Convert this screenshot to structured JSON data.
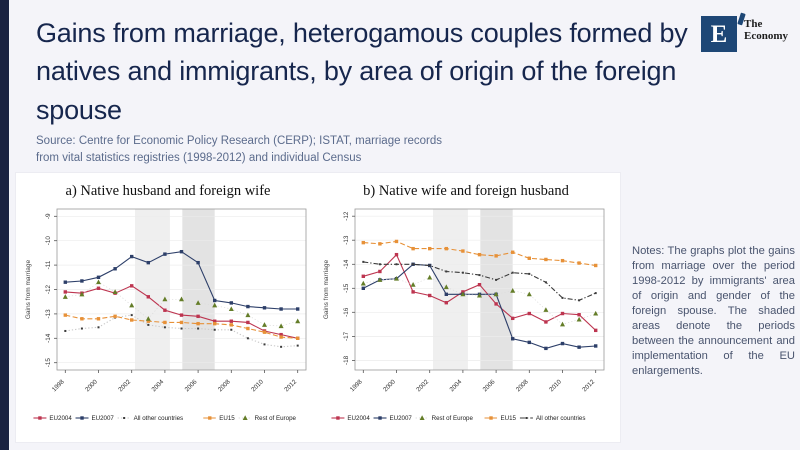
{
  "page": {
    "title": "Gains from marriage, heterogamous couples formed by natives and immigrants, by area of origin of the foreign spouse",
    "source": "Source: Centre for Economic Policy Research (CERP); ISTAT, marriage records from vital statistics registries (1998-2012) and individual Census",
    "notes": "Notes: The graphs plot the gains from marriage over the period 1998-2012 by immigrants' area of origin and gender of the foreign spouse. The shaded areas denote the periods between the announcement and implementation of the EU enlargements."
  },
  "logo": {
    "letter": "E",
    "text_line1": "The",
    "text_line2": "Economy",
    "box_color": "#1e4776"
  },
  "colors": {
    "accent_bar": "#1a2240",
    "title": "#16264d",
    "panel": "#ffffff",
    "band_light": "#efefef",
    "band_dark": "#e3e3e3"
  },
  "chart_data": [
    {
      "type": "line",
      "title": "a) Native husband and foreign wife",
      "ylabel": "Gains from marriage",
      "x": [
        1998,
        1999,
        2000,
        2001,
        2002,
        2003,
        2004,
        2005,
        2006,
        2007,
        2008,
        2009,
        2010,
        2011,
        2012
      ],
      "xticks": [
        1998,
        2000,
        2002,
        2004,
        2006,
        2008,
        2010,
        2012
      ],
      "xlim": [
        1997.5,
        2012.5
      ],
      "ylim": [
        -15.3,
        -8.7
      ],
      "yticks": [
        -9,
        -10,
        -11,
        -12,
        -13,
        -14,
        -15
      ],
      "bands": [
        [
          2002.2,
          2004.3
        ],
        [
          2005.05,
          2007.0
        ]
      ],
      "band_colors": [
        "#efefef",
        "#e3e3e3"
      ],
      "grid": true,
      "legend_position": "bottom",
      "series": [
        {
          "name": "EU2004",
          "color": "#bd3550",
          "line": "solid",
          "marker": "square",
          "values": [
            -12.1,
            -12.15,
            -11.95,
            -12.15,
            -11.85,
            -12.3,
            -12.85,
            -13.05,
            -13.1,
            -13.3,
            -13.3,
            -13.35,
            -13.7,
            -13.85,
            -14.0
          ]
        },
        {
          "name": "EU2007",
          "color": "#2d3f69",
          "line": "solid",
          "marker": "square",
          "values": [
            -11.7,
            -11.65,
            -11.5,
            -11.15,
            -10.65,
            -10.9,
            -10.55,
            -10.45,
            -10.9,
            -12.45,
            -12.55,
            -12.7,
            -12.75,
            -12.8,
            -12.8
          ]
        },
        {
          "name": "All other countries",
          "color": "#3b3b3b",
          "line": "dotted",
          "line_color": "#c9c9c9",
          "marker": "dot-small",
          "values": [
            -13.7,
            -13.6,
            -13.55,
            -13.15,
            -13.05,
            -13.45,
            -13.55,
            -13.6,
            -13.6,
            -13.65,
            -13.65,
            -14.0,
            -14.25,
            -14.35,
            -14.3
          ]
        },
        {
          "name": "EU15",
          "color": "#e79138",
          "line": "dashed",
          "marker": "square",
          "values": [
            -13.05,
            -13.2,
            -13.2,
            -13.1,
            -13.25,
            -13.3,
            -13.35,
            -13.35,
            -13.4,
            -13.4,
            -13.45,
            -13.6,
            -13.75,
            -13.95,
            -14.0
          ]
        },
        {
          "name": "Rest of Europe",
          "color": "#647d28",
          "line": "faint",
          "line_color": "#dcdcdc",
          "marker": "triangle",
          "values": [
            -12.3,
            -12.2,
            -11.7,
            -12.1,
            -12.65,
            -13.2,
            -12.4,
            -12.4,
            -12.55,
            -12.65,
            -12.8,
            -13.05,
            -13.45,
            -13.5,
            -13.3
          ]
        }
      ]
    },
    {
      "type": "line",
      "title": "b) Native wife and foreign husband",
      "ylabel": "Gains from marriage",
      "x": [
        1998,
        1999,
        2000,
        2001,
        2002,
        2003,
        2004,
        2005,
        2006,
        2007,
        2008,
        2009,
        2010,
        2011,
        2012
      ],
      "xticks": [
        1998,
        2000,
        2002,
        2004,
        2006,
        2008,
        2010,
        2012
      ],
      "xlim": [
        1997.5,
        2012.5
      ],
      "ylim": [
        -18.4,
        -11.7
      ],
      "yticks": [
        -12,
        -13,
        -14,
        -15,
        -16,
        -17,
        -18
      ],
      "bands": [
        [
          2002.2,
          2004.3
        ],
        [
          2005.05,
          2007.0
        ]
      ],
      "band_colors": [
        "#efefef",
        "#e3e3e3"
      ],
      "grid": true,
      "legend_position": "bottom",
      "series": [
        {
          "name": "EU2004",
          "color": "#bd3550",
          "line": "solid",
          "marker": "square",
          "values": [
            -14.5,
            -14.3,
            -13.6,
            -15.15,
            -15.3,
            -15.6,
            -15.15,
            -14.85,
            -15.65,
            -16.25,
            -16.05,
            -16.4,
            -16.05,
            -16.1,
            -16.75
          ]
        },
        {
          "name": "EU2007",
          "color": "#2d3f69",
          "line": "solid",
          "marker": "square",
          "values": [
            -15.0,
            -14.65,
            -14.6,
            -14.0,
            -14.05,
            -15.25,
            -15.25,
            -15.25,
            -15.25,
            -17.1,
            -17.25,
            -17.5,
            -17.3,
            -17.45,
            -17.4
          ]
        },
        {
          "name": "Rest of Europe",
          "color": "#647d28",
          "line": "faint",
          "line_color": "#dcdcdc",
          "marker": "triangle",
          "values": [
            -14.8,
            -14.65,
            -14.6,
            -14.85,
            -14.55,
            -14.95,
            -15.25,
            -15.3,
            -15.25,
            -15.1,
            -15.25,
            -15.9,
            -16.5,
            -16.3,
            -16.05
          ]
        },
        {
          "name": "EU15",
          "color": "#e79138",
          "line": "dashed",
          "marker": "square",
          "values": [
            -13.1,
            -13.15,
            -13.05,
            -13.35,
            -13.35,
            -13.35,
            -13.45,
            -13.6,
            -13.65,
            -13.5,
            -13.75,
            -13.8,
            -13.85,
            -13.95,
            -14.05
          ]
        },
        {
          "name": "All other countries",
          "color": "#3b3b3b",
          "line": "dashdot",
          "marker": "dot-small",
          "values": [
            -13.9,
            -14.0,
            -14.0,
            -14.0,
            -14.05,
            -14.3,
            -14.35,
            -14.45,
            -14.65,
            -14.35,
            -14.4,
            -14.75,
            -15.4,
            -15.5,
            -15.2
          ]
        }
      ]
    }
  ]
}
